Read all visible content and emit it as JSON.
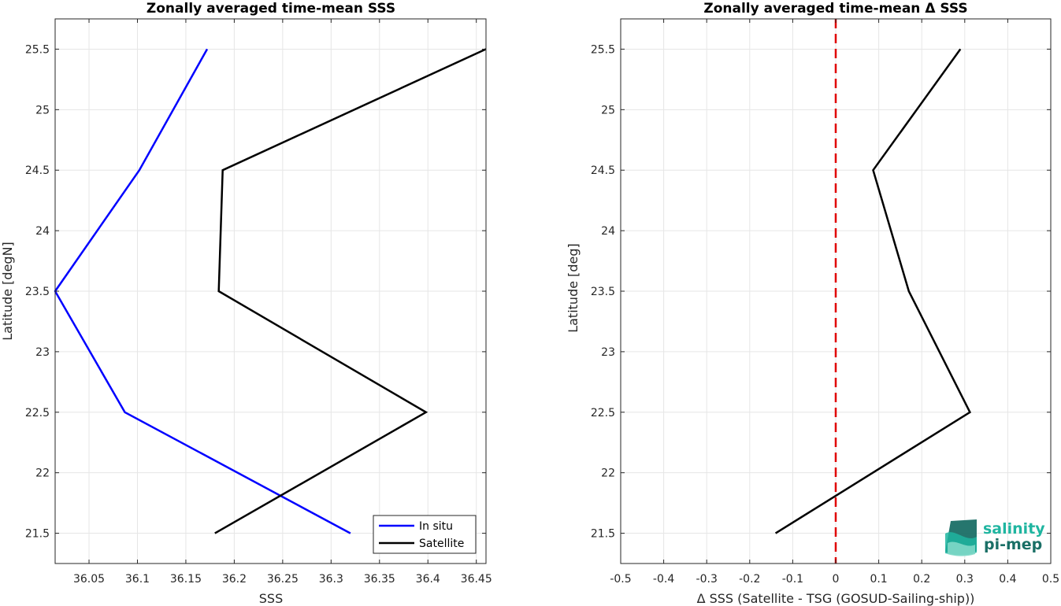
{
  "chart_data": [
    {
      "type": "line",
      "title": "Zonally averaged time-mean SSS",
      "xlabel": "SSS",
      "ylabel": "Latitude [degN]",
      "xlim": [
        36.015,
        36.46
      ],
      "ylim": [
        21.25,
        25.75
      ],
      "xticks": [
        36.05,
        36.1,
        36.15,
        36.2,
        36.25,
        36.3,
        36.35,
        36.4,
        36.45
      ],
      "xtick_labels": [
        "36.05",
        "36.1",
        "36.15",
        "36.2",
        "36.25",
        "36.3",
        "36.35",
        "36.4",
        "36.45"
      ],
      "yticks": [
        21.5,
        22,
        22.5,
        23,
        23.5,
        24,
        24.5,
        25,
        25.5
      ],
      "ytick_labels": [
        "21.5",
        "22",
        "22.5",
        "23",
        "23.5",
        "24",
        "24.5",
        "25",
        "25.5"
      ],
      "grid": true,
      "legend_position": "bottom-right",
      "series": [
        {
          "name": "In situ",
          "color": "#0000ff",
          "x": [
            36.32,
            36.087,
            36.015,
            36.102,
            36.172
          ],
          "y": [
            21.5,
            22.5,
            23.5,
            24.5,
            25.5
          ]
        },
        {
          "name": "Satellite",
          "color": "#000000",
          "x": [
            36.18,
            36.398,
            36.184,
            36.188,
            36.46
          ],
          "y": [
            21.5,
            22.5,
            23.5,
            24.5,
            25.5
          ]
        }
      ]
    },
    {
      "type": "line",
      "title": "Zonally averaged time-mean Δ SSS",
      "xlabel": "Δ SSS (Satellite - TSG (GOSUD-Sailing-ship))",
      "ylabel": "Latitude [deg]",
      "xlim": [
        -0.5,
        0.5
      ],
      "ylim": [
        21.25,
        25.75
      ],
      "xticks": [
        -0.5,
        -0.4,
        -0.3,
        -0.2,
        -0.1,
        0,
        0.1,
        0.2,
        0.3,
        0.4,
        0.5
      ],
      "xtick_labels": [
        "-0.5",
        "-0.4",
        "-0.3",
        "-0.2",
        "-0.1",
        "0",
        "0.1",
        "0.2",
        "0.3",
        "0.4",
        "0.5"
      ],
      "yticks": [
        21.5,
        22,
        22.5,
        23,
        23.5,
        24,
        24.5,
        25,
        25.5
      ],
      "ytick_labels": [
        "21.5",
        "22",
        "22.5",
        "23",
        "23.5",
        "24",
        "24.5",
        "25",
        "25.5"
      ],
      "grid": true,
      "reference_line": {
        "x": 0,
        "color": "#e00000",
        "style": "dashed"
      },
      "series": [
        {
          "color": "#000000",
          "x": [
            -0.14,
            0.312,
            0.17,
            0.087,
            0.29
          ],
          "y": [
            21.5,
            22.5,
            23.5,
            24.5,
            25.5
          ]
        }
      ]
    }
  ],
  "logo": {
    "line1": "salinity",
    "line2": "pi-mep",
    "color_light": "#1fb5a0",
    "color_dark": "#1a6f66"
  }
}
